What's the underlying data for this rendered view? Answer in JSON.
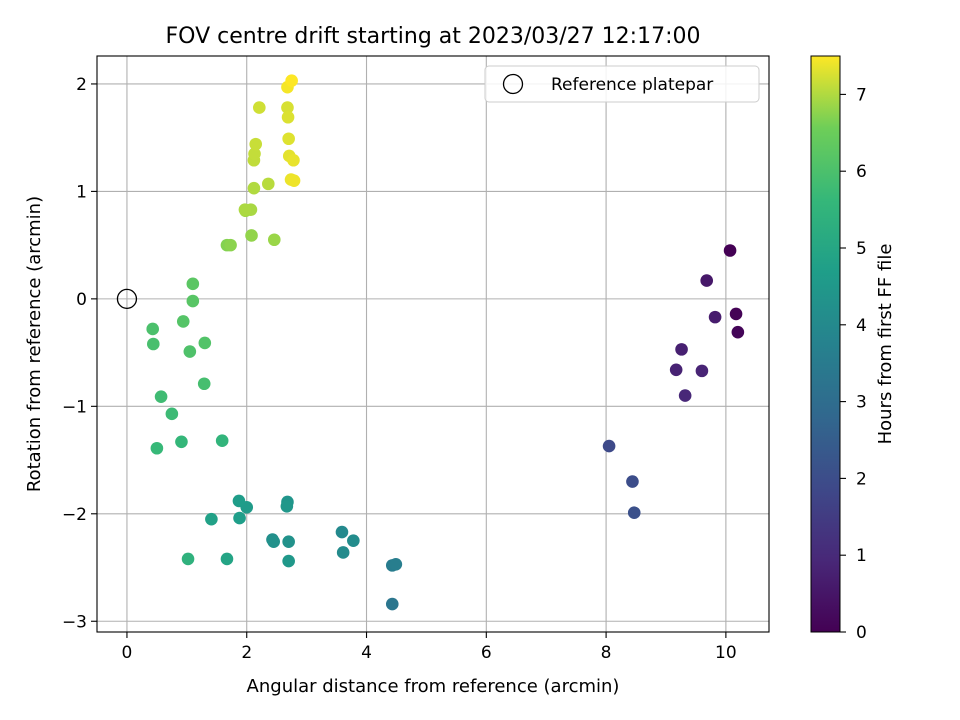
{
  "chart_data": {
    "type": "scatter",
    "title": "FOV centre drift starting at 2023/03/27 12:17:00",
    "xlabel": "Angular distance from reference (arcmin)",
    "ylabel": "Rotation from reference (arcmin)",
    "xlim": [
      -0.5,
      10.72
    ],
    "ylim": [
      -3.1,
      2.26
    ],
    "xticks": [
      0,
      2,
      4,
      6,
      8,
      10
    ],
    "yticks": [
      -3,
      -2,
      -1,
      0,
      1,
      2
    ],
    "grid": true,
    "legend": {
      "placement": "top-right",
      "entries": [
        "Reference platepar"
      ]
    },
    "reference_point": {
      "x": 0,
      "y": 0
    },
    "colorbar": {
      "label": "Hours from first FF file",
      "range": [
        0,
        7.5
      ],
      "ticks": [
        0,
        1,
        2,
        3,
        4,
        5,
        6,
        7
      ],
      "colormap": "viridis"
    },
    "points": [
      {
        "x": 10.07,
        "y": 0.45,
        "c": 0.0
      },
      {
        "x": 10.17,
        "y": -0.14,
        "c": 0.05
      },
      {
        "x": 10.2,
        "y": -0.31,
        "c": 0.1
      },
      {
        "x": 9.68,
        "y": 0.17,
        "c": 0.55
      },
      {
        "x": 9.82,
        "y": -0.17,
        "c": 0.65
      },
      {
        "x": 9.26,
        "y": -0.47,
        "c": 0.75
      },
      {
        "x": 9.17,
        "y": -0.66,
        "c": 0.8
      },
      {
        "x": 9.6,
        "y": -0.67,
        "c": 0.85
      },
      {
        "x": 9.32,
        "y": -0.9,
        "c": 0.95
      },
      {
        "x": 8.05,
        "y": -1.37,
        "c": 1.9
      },
      {
        "x": 8.44,
        "y": -1.7,
        "c": 2.0
      },
      {
        "x": 8.47,
        "y": -1.99,
        "c": 2.1
      },
      {
        "x": 4.43,
        "y": -2.84,
        "c": 3.3
      },
      {
        "x": 4.43,
        "y": -2.48,
        "c": 3.55
      },
      {
        "x": 4.49,
        "y": -2.47,
        "c": 3.6
      },
      {
        "x": 3.59,
        "y": -2.17,
        "c": 4.0
      },
      {
        "x": 3.61,
        "y": -2.36,
        "c": 4.05
      },
      {
        "x": 3.78,
        "y": -2.25,
        "c": 4.1
      },
      {
        "x": 2.43,
        "y": -2.24,
        "c": 4.2
      },
      {
        "x": 2.45,
        "y": -2.26,
        "c": 4.25
      },
      {
        "x": 2.7,
        "y": -2.26,
        "c": 4.3
      },
      {
        "x": 2.68,
        "y": -1.89,
        "c": 4.4
      },
      {
        "x": 2.67,
        "y": -1.93,
        "c": 4.45
      },
      {
        "x": 2.7,
        "y": -2.44,
        "c": 4.5
      },
      {
        "x": 2.0,
        "y": -1.94,
        "c": 4.6
      },
      {
        "x": 1.87,
        "y": -1.88,
        "c": 4.65
      },
      {
        "x": 1.88,
        "y": -2.04,
        "c": 4.7
      },
      {
        "x": 1.41,
        "y": -2.05,
        "c": 4.8
      },
      {
        "x": 1.67,
        "y": -2.42,
        "c": 4.9
      },
      {
        "x": 1.02,
        "y": -2.42,
        "c": 5.4
      },
      {
        "x": 1.59,
        "y": -1.32,
        "c": 5.5
      },
      {
        "x": 0.91,
        "y": -1.33,
        "c": 5.6
      },
      {
        "x": 0.5,
        "y": -1.39,
        "c": 5.65
      },
      {
        "x": 0.75,
        "y": -1.07,
        "c": 5.75
      },
      {
        "x": 0.57,
        "y": -0.91,
        "c": 5.8
      },
      {
        "x": 1.29,
        "y": -0.79,
        "c": 5.9
      },
      {
        "x": 0.44,
        "y": -0.42,
        "c": 5.95
      },
      {
        "x": 0.43,
        "y": -0.28,
        "c": 6.0
      },
      {
        "x": 1.05,
        "y": -0.49,
        "c": 6.05
      },
      {
        "x": 1.3,
        "y": -0.41,
        "c": 6.1
      },
      {
        "x": 0.94,
        "y": -0.21,
        "c": 6.15
      },
      {
        "x": 1.1,
        "y": -0.02,
        "c": 6.2
      },
      {
        "x": 1.1,
        "y": 0.14,
        "c": 6.25
      },
      {
        "x": 1.67,
        "y": 0.5,
        "c": 6.7
      },
      {
        "x": 1.73,
        "y": 0.5,
        "c": 6.75
      },
      {
        "x": 2.08,
        "y": 0.59,
        "c": 6.8
      },
      {
        "x": 2.46,
        "y": 0.55,
        "c": 6.85
      },
      {
        "x": 1.98,
        "y": 0.82,
        "c": 6.9
      },
      {
        "x": 2.07,
        "y": 0.83,
        "c": 6.95
      },
      {
        "x": 1.97,
        "y": 0.83,
        "c": 6.97
      },
      {
        "x": 2.12,
        "y": 1.03,
        "c": 7.0
      },
      {
        "x": 2.36,
        "y": 1.07,
        "c": 7.05
      },
      {
        "x": 2.12,
        "y": 1.29,
        "c": 7.1
      },
      {
        "x": 2.13,
        "y": 1.35,
        "c": 7.12
      },
      {
        "x": 2.15,
        "y": 1.44,
        "c": 7.15
      },
      {
        "x": 2.21,
        "y": 1.78,
        "c": 7.2
      },
      {
        "x": 2.68,
        "y": 1.78,
        "c": 7.25
      },
      {
        "x": 2.69,
        "y": 1.69,
        "c": 7.28
      },
      {
        "x": 2.7,
        "y": 1.49,
        "c": 7.3
      },
      {
        "x": 2.71,
        "y": 1.33,
        "c": 7.33
      },
      {
        "x": 2.78,
        "y": 1.29,
        "c": 7.36
      },
      {
        "x": 2.74,
        "y": 1.11,
        "c": 7.38
      },
      {
        "x": 2.79,
        "y": 1.1,
        "c": 7.4
      },
      {
        "x": 2.68,
        "y": 1.97,
        "c": 7.45
      },
      {
        "x": 2.75,
        "y": 2.03,
        "c": 7.5
      }
    ]
  }
}
